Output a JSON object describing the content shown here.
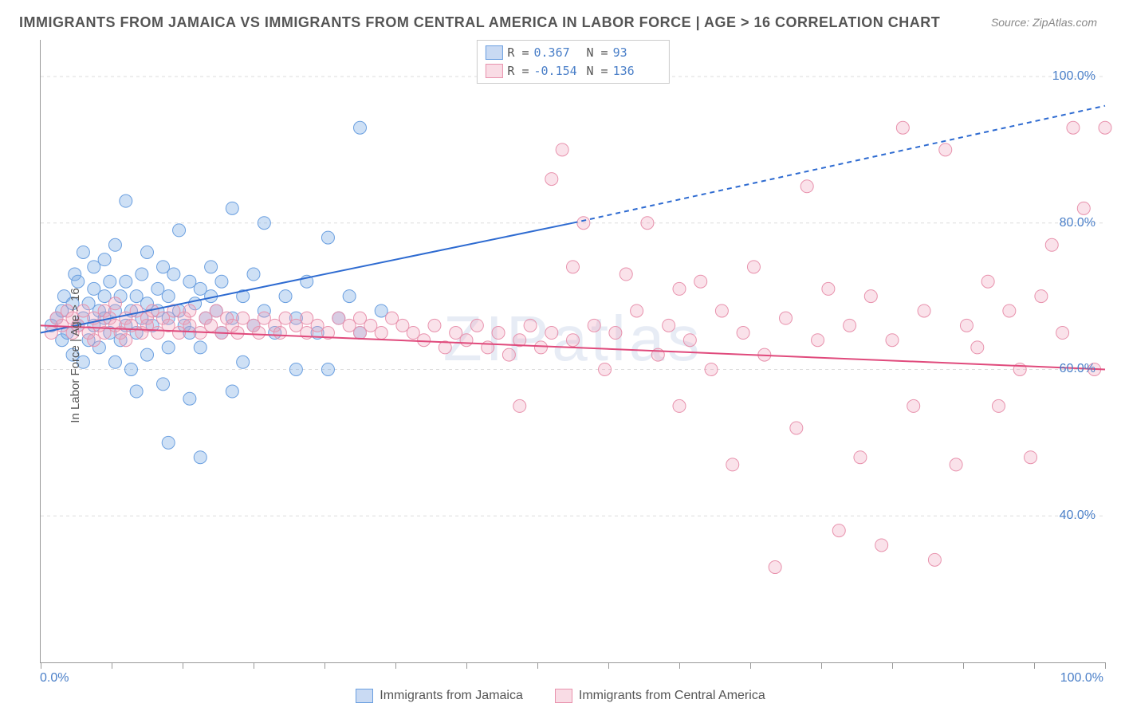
{
  "title": "IMMIGRANTS FROM JAMAICA VS IMMIGRANTS FROM CENTRAL AMERICA IN LABOR FORCE | AGE > 16 CORRELATION CHART",
  "source": "Source: ZipAtlas.com",
  "watermark": "ZIPatlas",
  "chart": {
    "type": "scatter",
    "ylabel": "In Labor Force | Age > 16",
    "xlim": [
      0,
      100
    ],
    "ylim": [
      20,
      105
    ],
    "y_gridlines": [
      40,
      60,
      80,
      100
    ],
    "y_tick_labels": [
      "40.0%",
      "60.0%",
      "80.0%",
      "100.0%"
    ],
    "x_tick_left": "0.0%",
    "x_tick_right": "100.0%",
    "x_minor_ticks": [
      0,
      6.7,
      13.3,
      20,
      26.7,
      33.3,
      40,
      46.7,
      53.3,
      60,
      66.7,
      73.3,
      80,
      86.7,
      93.3,
      100
    ],
    "background": "#ffffff",
    "grid_color": "#dddddd",
    "axis_color": "#999999",
    "marker_radius": 8,
    "series": [
      {
        "name": "Immigrants from Jamaica",
        "color_fill": "rgba(115,165,225,0.35)",
        "color_stroke": "#6a9fe0",
        "R": "0.367",
        "N": "93",
        "trend": {
          "x1": 0,
          "y1": 65,
          "x2_solid": 50,
          "y2_solid": 80,
          "x2_dash": 100,
          "y2_dash": 96,
          "color": "#2e6bd1",
          "width": 2
        },
        "points": [
          [
            1,
            66
          ],
          [
            1.5,
            67
          ],
          [
            2,
            68
          ],
          [
            2,
            64
          ],
          [
            2.2,
            70
          ],
          [
            2.5,
            65
          ],
          [
            3,
            69
          ],
          [
            3,
            62
          ],
          [
            3.2,
            73
          ],
          [
            3.5,
            66
          ],
          [
            3.5,
            72
          ],
          [
            4,
            67
          ],
          [
            4,
            76
          ],
          [
            4,
            61
          ],
          [
            4.5,
            69
          ],
          [
            4.5,
            64
          ],
          [
            5,
            71
          ],
          [
            5,
            66
          ],
          [
            5,
            74
          ],
          [
            5.5,
            68
          ],
          [
            5.5,
            63
          ],
          [
            6,
            70
          ],
          [
            6,
            67
          ],
          [
            6,
            75
          ],
          [
            6.5,
            65
          ],
          [
            6.5,
            72
          ],
          [
            7,
            68
          ],
          [
            7,
            61
          ],
          [
            7,
            77
          ],
          [
            7.5,
            70
          ],
          [
            7.5,
            64
          ],
          [
            8,
            66
          ],
          [
            8,
            72
          ],
          [
            8,
            83
          ],
          [
            8.5,
            68
          ],
          [
            8.5,
            60
          ],
          [
            9,
            70
          ],
          [
            9,
            65
          ],
          [
            9,
            57
          ],
          [
            9.5,
            67
          ],
          [
            9.5,
            73
          ],
          [
            10,
            69
          ],
          [
            10,
            62
          ],
          [
            10,
            76
          ],
          [
            10.5,
            66
          ],
          [
            11,
            68
          ],
          [
            11,
            71
          ],
          [
            11.5,
            58
          ],
          [
            11.5,
            74
          ],
          [
            12,
            67
          ],
          [
            12,
            70
          ],
          [
            12,
            63
          ],
          [
            12.5,
            73
          ],
          [
            13,
            68
          ],
          [
            13,
            79
          ],
          [
            13.5,
            66
          ],
          [
            14,
            72
          ],
          [
            14,
            65
          ],
          [
            14,
            56
          ],
          [
            14.5,
            69
          ],
          [
            15,
            71
          ],
          [
            15,
            63
          ],
          [
            15,
            48
          ],
          [
            15.5,
            67
          ],
          [
            16,
            70
          ],
          [
            16,
            74
          ],
          [
            16.5,
            68
          ],
          [
            17,
            65
          ],
          [
            17,
            72
          ],
          [
            18,
            82
          ],
          [
            18,
            67
          ],
          [
            19,
            70
          ],
          [
            19,
            61
          ],
          [
            20,
            73
          ],
          [
            20,
            66
          ],
          [
            21,
            68
          ],
          [
            21,
            80
          ],
          [
            22,
            65
          ],
          [
            23,
            70
          ],
          [
            24,
            60
          ],
          [
            24,
            67
          ],
          [
            25,
            72
          ],
          [
            26,
            65
          ],
          [
            27,
            78
          ],
          [
            27,
            60
          ],
          [
            28,
            67
          ],
          [
            29,
            70
          ],
          [
            30,
            93
          ],
          [
            30,
            65
          ],
          [
            32,
            68
          ],
          [
            12,
            50
          ],
          [
            18,
            57
          ]
        ]
      },
      {
        "name": "Immigrants from Central America",
        "color_fill": "rgba(240,160,185,0.30)",
        "color_stroke": "#e892ad",
        "R": "-0.154",
        "N": "136",
        "trend": {
          "x1": 0,
          "y1": 66,
          "x2_solid": 100,
          "y2_solid": 60,
          "x2_dash": 100,
          "y2_dash": 60,
          "color": "#e04a7c",
          "width": 2
        },
        "points": [
          [
            1,
            65
          ],
          [
            1.5,
            67
          ],
          [
            2,
            66
          ],
          [
            2.5,
            68
          ],
          [
            3,
            65
          ],
          [
            3,
            67
          ],
          [
            3.5,
            66
          ],
          [
            4,
            68
          ],
          [
            4.5,
            65
          ],
          [
            5,
            67
          ],
          [
            5,
            64
          ],
          [
            5.5,
            66
          ],
          [
            6,
            68
          ],
          [
            6,
            65
          ],
          [
            6.5,
            67
          ],
          [
            7,
            66
          ],
          [
            7,
            69
          ],
          [
            7.5,
            65
          ],
          [
            8,
            67
          ],
          [
            8,
            64
          ],
          [
            8.5,
            66
          ],
          [
            9,
            68
          ],
          [
            9.5,
            65
          ],
          [
            10,
            67
          ],
          [
            10,
            66
          ],
          [
            10.5,
            68
          ],
          [
            11,
            65
          ],
          [
            11.5,
            67
          ],
          [
            12,
            66
          ],
          [
            12.5,
            68
          ],
          [
            13,
            65
          ],
          [
            13.5,
            67
          ],
          [
            14,
            66
          ],
          [
            14,
            68
          ],
          [
            15,
            65
          ],
          [
            15.5,
            67
          ],
          [
            16,
            66
          ],
          [
            16.5,
            68
          ],
          [
            17,
            65
          ],
          [
            17.5,
            67
          ],
          [
            18,
            66
          ],
          [
            18.5,
            65
          ],
          [
            19,
            67
          ],
          [
            20,
            66
          ],
          [
            20.5,
            65
          ],
          [
            21,
            67
          ],
          [
            22,
            66
          ],
          [
            22.5,
            65
          ],
          [
            23,
            67
          ],
          [
            24,
            66
          ],
          [
            25,
            65
          ],
          [
            25,
            67
          ],
          [
            26,
            66
          ],
          [
            27,
            65
          ],
          [
            28,
            67
          ],
          [
            29,
            66
          ],
          [
            30,
            65
          ],
          [
            30,
            67
          ],
          [
            31,
            66
          ],
          [
            32,
            65
          ],
          [
            33,
            67
          ],
          [
            34,
            66
          ],
          [
            35,
            65
          ],
          [
            36,
            64
          ],
          [
            37,
            66
          ],
          [
            38,
            63
          ],
          [
            39,
            65
          ],
          [
            40,
            64
          ],
          [
            41,
            66
          ],
          [
            42,
            63
          ],
          [
            43,
            65
          ],
          [
            44,
            62
          ],
          [
            45,
            64
          ],
          [
            45,
            55
          ],
          [
            46,
            66
          ],
          [
            47,
            63
          ],
          [
            48,
            86
          ],
          [
            48,
            65
          ],
          [
            49,
            90
          ],
          [
            50,
            64
          ],
          [
            50,
            74
          ],
          [
            51,
            80
          ],
          [
            52,
            66
          ],
          [
            53,
            60
          ],
          [
            54,
            65
          ],
          [
            55,
            73
          ],
          [
            56,
            68
          ],
          [
            57,
            80
          ],
          [
            58,
            62
          ],
          [
            59,
            66
          ],
          [
            60,
            55
          ],
          [
            60,
            71
          ],
          [
            61,
            64
          ],
          [
            62,
            72
          ],
          [
            63,
            60
          ],
          [
            64,
            68
          ],
          [
            65,
            47
          ],
          [
            66,
            65
          ],
          [
            67,
            74
          ],
          [
            68,
            62
          ],
          [
            69,
            33
          ],
          [
            70,
            67
          ],
          [
            71,
            52
          ],
          [
            72,
            85
          ],
          [
            73,
            64
          ],
          [
            74,
            71
          ],
          [
            75,
            38
          ],
          [
            76,
            66
          ],
          [
            77,
            48
          ],
          [
            78,
            70
          ],
          [
            79,
            36
          ],
          [
            80,
            64
          ],
          [
            81,
            93
          ],
          [
            82,
            55
          ],
          [
            83,
            68
          ],
          [
            84,
            34
          ],
          [
            85,
            90
          ],
          [
            86,
            47
          ],
          [
            87,
            66
          ],
          [
            88,
            63
          ],
          [
            89,
            72
          ],
          [
            90,
            55
          ],
          [
            91,
            68
          ],
          [
            92,
            60
          ],
          [
            93,
            48
          ],
          [
            94,
            70
          ],
          [
            95,
            77
          ],
          [
            96,
            65
          ],
          [
            97,
            93
          ],
          [
            98,
            82
          ],
          [
            99,
            60
          ],
          [
            100,
            93
          ]
        ]
      }
    ]
  },
  "bottom_legend": [
    {
      "label": "Immigrants from Jamaica",
      "swatch": "blue"
    },
    {
      "label": "Immigrants from Central America",
      "swatch": "pink"
    }
  ]
}
